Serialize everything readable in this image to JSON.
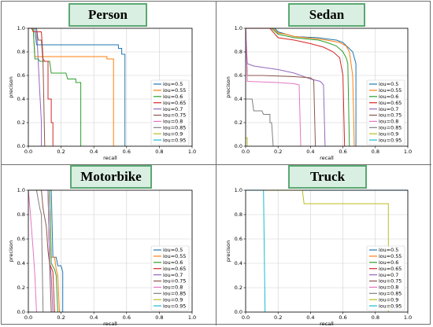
{
  "chart_data": [
    {
      "type": "line",
      "title": "Person",
      "xlabel": "recall",
      "ylabel": "precison",
      "xlim": [
        0,
        1.0
      ],
      "ylim": [
        0,
        1.0
      ],
      "xticks": [
        "0.0",
        "0.2",
        "0.4",
        "0.6",
        "0.8",
        "1.0"
      ],
      "yticks": [
        "0.0",
        "0.2",
        "0.4",
        "0.6",
        "0.8",
        "1.0"
      ],
      "legend_position": "lower-right",
      "series": [
        {
          "name": "iou=0.5",
          "color": "#1f77b4",
          "points": [
            [
              0,
              1
            ],
            [
              0.04,
              1
            ],
            [
              0.05,
              0.86
            ],
            [
              0.55,
              0.86
            ],
            [
              0.55,
              0.83
            ],
            [
              0.57,
              0.83
            ],
            [
              0.57,
              0.78
            ],
            [
              0.59,
              0.78
            ],
            [
              0.59,
              0
            ]
          ]
        },
        {
          "name": "iou=0.55",
          "color": "#ff7f0e",
          "points": [
            [
              0,
              1
            ],
            [
              0.03,
              1
            ],
            [
              0.04,
              0.76
            ],
            [
              0.48,
              0.76
            ],
            [
              0.48,
              0.74
            ],
            [
              0.52,
              0.74
            ],
            [
              0.52,
              0
            ]
          ]
        },
        {
          "name": "iou=0.6",
          "color": "#2ca02c",
          "points": [
            [
              0,
              1
            ],
            [
              0.03,
              1
            ],
            [
              0.04,
              0.74
            ],
            [
              0.06,
              0.74
            ],
            [
              0.07,
              0.72
            ],
            [
              0.13,
              0.72
            ],
            [
              0.14,
              0.62
            ],
            [
              0.23,
              0.62
            ],
            [
              0.24,
              0.57
            ],
            [
              0.29,
              0.57
            ],
            [
              0.29,
              0.54
            ],
            [
              0.32,
              0.54
            ],
            [
              0.32,
              0
            ]
          ]
        },
        {
          "name": "iou=0.65",
          "color": "#d62728",
          "points": [
            [
              0,
              1
            ],
            [
              0.02,
              1
            ],
            [
              0.03,
              0.97
            ],
            [
              0.08,
              0.97
            ],
            [
              0.09,
              0.74
            ],
            [
              0.1,
              0.72
            ],
            [
              0.12,
              0.72
            ],
            [
              0.12,
              0.4
            ],
            [
              0.14,
              0.4
            ],
            [
              0.14,
              0.2
            ],
            [
              0.15,
              0.2
            ],
            [
              0.15,
              0
            ]
          ]
        },
        {
          "name": "iou=0.7",
          "color": "#9467bd",
          "points": [
            [
              0,
              1
            ],
            [
              0.05,
              1
            ],
            [
              0.07,
              0.45
            ],
            [
              0.08,
              0.2
            ],
            [
              0.08,
              0
            ]
          ]
        },
        {
          "name": "iou=0.75",
          "color": "#8c564b",
          "points": [
            [
              0,
              1
            ],
            [
              0.05,
              1
            ],
            [
              0.06,
              0.9
            ],
            [
              0.08,
              0.9
            ],
            [
              0.09,
              0.7
            ],
            [
              0.1,
              0
            ]
          ]
        },
        {
          "name": "iou=0.8",
          "color": "#e377c2",
          "points": []
        },
        {
          "name": "iou=0.85",
          "color": "#7f7f7f",
          "points": []
        },
        {
          "name": "iou=0.9",
          "color": "#bcbd22",
          "points": []
        },
        {
          "name": "iou=0.95",
          "color": "#17becf",
          "points": []
        }
      ]
    },
    {
      "type": "line",
      "title": "Sedan",
      "xlabel": "recall",
      "ylabel": "precison",
      "xlim": [
        0,
        1.0
      ],
      "ylim": [
        0,
        1.0
      ],
      "xticks": [
        "0.0",
        "0.2",
        "0.4",
        "0.6",
        "0.8",
        "1.0"
      ],
      "yticks": [
        "0.0",
        "0.2",
        "0.4",
        "0.6",
        "0.8",
        "1.0"
      ],
      "legend_position": "lower-right",
      "series": [
        {
          "name": "iou=0.5",
          "color": "#1f77b4",
          "points": [
            [
              0,
              1
            ],
            [
              0.18,
              1
            ],
            [
              0.2,
              0.97
            ],
            [
              0.25,
              0.95
            ],
            [
              0.3,
              0.93
            ],
            [
              0.45,
              0.92
            ],
            [
              0.5,
              0.91
            ],
            [
              0.56,
              0.9
            ],
            [
              0.6,
              0.88
            ],
            [
              0.63,
              0.84
            ],
            [
              0.66,
              0.8
            ],
            [
              0.68,
              0.7
            ],
            [
              0.68,
              0
            ]
          ]
        },
        {
          "name": "iou=0.55",
          "color": "#ff7f0e",
          "points": [
            [
              0,
              1
            ],
            [
              0.17,
              1
            ],
            [
              0.2,
              0.96
            ],
            [
              0.25,
              0.95
            ],
            [
              0.3,
              0.93
            ],
            [
              0.45,
              0.91
            ],
            [
              0.5,
              0.9
            ],
            [
              0.58,
              0.88
            ],
            [
              0.62,
              0.85
            ],
            [
              0.64,
              0.8
            ],
            [
              0.65,
              0.7
            ],
            [
              0.66,
              0.6
            ],
            [
              0.67,
              0
            ]
          ]
        },
        {
          "name": "iou=0.6",
          "color": "#2ca02c",
          "points": [
            [
              0,
              1
            ],
            [
              0.16,
              1
            ],
            [
              0.2,
              0.95
            ],
            [
              0.3,
              0.92
            ],
            [
              0.45,
              0.9
            ],
            [
              0.5,
              0.88
            ],
            [
              0.56,
              0.85
            ],
            [
              0.6,
              0.8
            ],
            [
              0.62,
              0.75
            ],
            [
              0.63,
              0.7
            ],
            [
              0.64,
              0
            ]
          ]
        },
        {
          "name": "iou=0.65",
          "color": "#d62728",
          "points": [
            [
              0,
              1
            ],
            [
              0.15,
              1
            ],
            [
              0.2,
              0.92
            ],
            [
              0.3,
              0.9
            ],
            [
              0.4,
              0.87
            ],
            [
              0.48,
              0.84
            ],
            [
              0.54,
              0.8
            ],
            [
              0.58,
              0.75
            ],
            [
              0.6,
              0.6
            ],
            [
              0.61,
              0
            ]
          ]
        },
        {
          "name": "iou=0.7",
          "color": "#9467bd",
          "points": [
            [
              0,
              1
            ],
            [
              0.01,
              0.7
            ],
            [
              0.05,
              0.68
            ],
            [
              0.2,
              0.65
            ],
            [
              0.3,
              0.62
            ],
            [
              0.4,
              0.57
            ],
            [
              0.46,
              0.55
            ],
            [
              0.48,
              0.52
            ],
            [
              0.49,
              0
            ]
          ]
        },
        {
          "name": "iou=0.75",
          "color": "#8c564b",
          "points": [
            [
              0,
              1
            ],
            [
              0.01,
              0.6
            ],
            [
              0.1,
              0.6
            ],
            [
              0.3,
              0.59
            ],
            [
              0.4,
              0.58
            ],
            [
              0.42,
              0.56
            ],
            [
              0.43,
              0
            ]
          ]
        },
        {
          "name": "iou=0.8",
          "color": "#e377c2",
          "points": [
            [
              0,
              1
            ],
            [
              0.01,
              0.55
            ],
            [
              0.2,
              0.54
            ],
            [
              0.3,
              0.53
            ],
            [
              0.33,
              0.52
            ],
            [
              0.34,
              0
            ]
          ]
        },
        {
          "name": "iou=0.85",
          "color": "#7f7f7f",
          "points": [
            [
              0,
              0.4
            ],
            [
              0.04,
              0.4
            ],
            [
              0.05,
              0.3
            ],
            [
              0.1,
              0.3
            ],
            [
              0.11,
              0.27
            ],
            [
              0.15,
              0.27
            ],
            [
              0.15,
              0.2
            ],
            [
              0.16,
              0.2
            ],
            [
              0.17,
              0
            ]
          ]
        },
        {
          "name": "iou=0.9",
          "color": "#bcbd22",
          "points": [
            [
              0,
              0.07
            ],
            [
              0.01,
              0.07
            ],
            [
              0.01,
              0
            ]
          ]
        },
        {
          "name": "iou=0.95",
          "color": "#17becf",
          "points": []
        }
      ]
    },
    {
      "type": "line",
      "title": "Motorbike",
      "xlabel": "recall",
      "ylabel": "precison",
      "xlim": [
        0,
        1.0
      ],
      "ylim": [
        0,
        1.0
      ],
      "xticks": [
        "0.0",
        "0.2",
        "0.4",
        "0.6",
        "0.8",
        "1.0"
      ],
      "yticks": [
        "0.0",
        "0.2",
        "0.4",
        "0.6",
        "0.8",
        "1.0"
      ],
      "legend_position": "lower-right",
      "series": [
        {
          "name": "iou=0.5",
          "color": "#1f77b4",
          "points": [
            [
              0,
              1
            ],
            [
              0.14,
              1
            ],
            [
              0.15,
              0.45
            ],
            [
              0.17,
              0.45
            ],
            [
              0.18,
              0.38
            ],
            [
              0.2,
              0.38
            ],
            [
              0.21,
              0.33
            ],
            [
              0.21,
              0
            ]
          ]
        },
        {
          "name": "iou=0.55",
          "color": "#ff7f0e",
          "points": [
            [
              0,
              1
            ],
            [
              0.13,
              1
            ],
            [
              0.14,
              0.45
            ],
            [
              0.16,
              0.45
            ],
            [
              0.17,
              0.35
            ],
            [
              0.18,
              0.3
            ],
            [
              0.19,
              0
            ]
          ]
        },
        {
          "name": "iou=0.6",
          "color": "#2ca02c",
          "points": [
            [
              0,
              1
            ],
            [
              0.13,
              1
            ],
            [
              0.14,
              0.4
            ],
            [
              0.16,
              0.35
            ],
            [
              0.17,
              0.3
            ],
            [
              0.18,
              0
            ]
          ]
        },
        {
          "name": "iou=0.65",
          "color": "#d62728",
          "points": [
            [
              0,
              1
            ],
            [
              0.12,
              1
            ],
            [
              0.13,
              0.4
            ],
            [
              0.15,
              0.33
            ],
            [
              0.16,
              0
            ]
          ]
        },
        {
          "name": "iou=0.7",
          "color": "#9467bd",
          "points": [
            [
              0,
              1
            ],
            [
              0.12,
              1
            ],
            [
              0.13,
              0.42
            ],
            [
              0.14,
              0.3
            ],
            [
              0.15,
              0
            ]
          ]
        },
        {
          "name": "iou=0.75",
          "color": "#8c564b",
          "points": [
            [
              0,
              1
            ],
            [
              0.08,
              1
            ],
            [
              0.09,
              0.85
            ],
            [
              0.11,
              0.7
            ],
            [
              0.12,
              0.5
            ],
            [
              0.13,
              0.4
            ],
            [
              0.14,
              0
            ]
          ]
        },
        {
          "name": "iou=0.8",
          "color": "#e377c2",
          "points": [
            [
              0,
              1
            ],
            [
              0.01,
              0.85
            ],
            [
              0.03,
              0.5
            ],
            [
              0.04,
              0.3
            ],
            [
              0.05,
              0
            ]
          ]
        },
        {
          "name": "iou=0.85",
          "color": "#7f7f7f",
          "points": [
            [
              0,
              1
            ],
            [
              0.05,
              1
            ],
            [
              0.07,
              0.85
            ],
            [
              0.08,
              0.8
            ],
            [
              0.09,
              0
            ]
          ]
        },
        {
          "name": "iou=0.9",
          "color": "#bcbd22",
          "points": []
        },
        {
          "name": "iou=0.95",
          "color": "#17becf",
          "points": []
        }
      ]
    },
    {
      "type": "line",
      "title": "Truck",
      "xlabel": "recall",
      "ylabel": "precison",
      "xlim": [
        0,
        1.0
      ],
      "ylim": [
        0,
        1.0
      ],
      "xticks": [
        "0.0",
        "0.2",
        "0.4",
        "0.6",
        "0.8",
        "1.0"
      ],
      "yticks": [
        "0.0",
        "0.2",
        "0.4",
        "0.6",
        "0.8",
        "1.0"
      ],
      "legend_position": "lower-right",
      "series": [
        {
          "name": "iou=0.5",
          "color": "#1f77b4",
          "points": [
            [
              0,
              1
            ],
            [
              1.0,
              1
            ]
          ]
        },
        {
          "name": "iou=0.55",
          "color": "#ff7f0e",
          "points": []
        },
        {
          "name": "iou=0.6",
          "color": "#2ca02c",
          "points": []
        },
        {
          "name": "iou=0.65",
          "color": "#d62728",
          "points": []
        },
        {
          "name": "iou=0.7",
          "color": "#9467bd",
          "points": []
        },
        {
          "name": "iou=0.75",
          "color": "#8c564b",
          "points": []
        },
        {
          "name": "iou=0.8",
          "color": "#e377c2",
          "points": []
        },
        {
          "name": "iou=0.85",
          "color": "#7f7f7f",
          "points": []
        },
        {
          "name": "iou=0.9",
          "color": "#bcbd22",
          "points": [
            [
              0,
              1
            ],
            [
              0.35,
              1
            ],
            [
              0.36,
              0.89
            ],
            [
              0.88,
              0.89
            ],
            [
              0.88,
              0
            ]
          ]
        },
        {
          "name": "iou=0.95",
          "color": "#17becf",
          "points": [
            [
              0,
              1
            ],
            [
              0.11,
              1
            ],
            [
              0.12,
              0
            ]
          ]
        }
      ]
    }
  ]
}
